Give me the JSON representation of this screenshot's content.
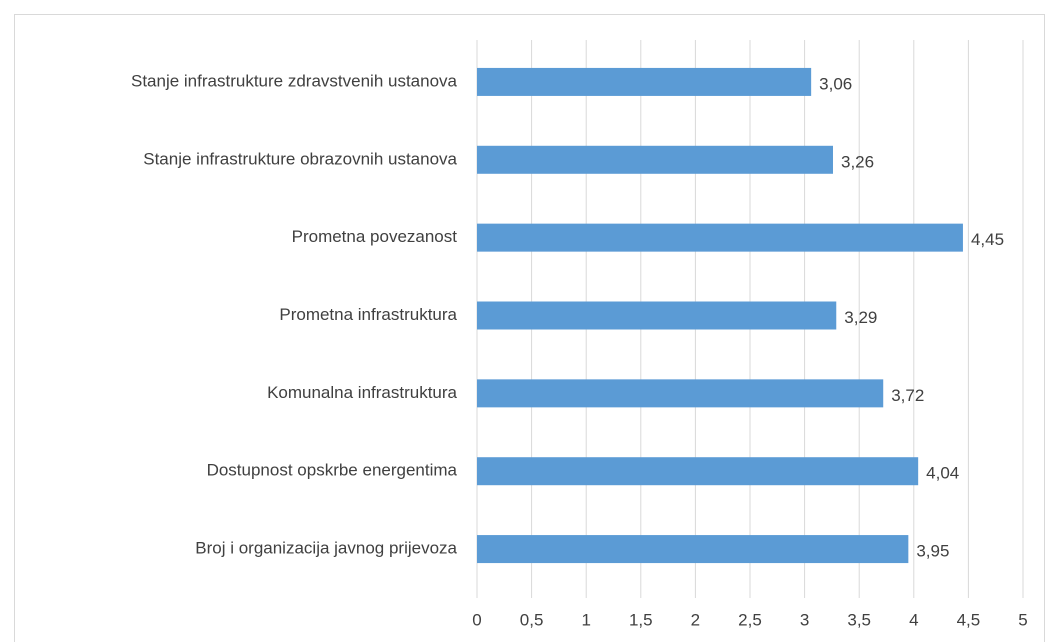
{
  "chart_data": {
    "type": "bar",
    "orientation": "horizontal",
    "categories": [
      "Stanje infrastrukture zdravstvenih ustanova",
      "Stanje infrastrukture obrazovnih ustanova",
      "Prometna povezanost",
      "Prometna infrastruktura",
      "Komunalna infrastruktura",
      "Dostupnost opskrbe energentima",
      "Broj i organizacija javnog prijevoza"
    ],
    "values": [
      3.06,
      3.26,
      4.45,
      3.29,
      3.72,
      4.04,
      3.95
    ],
    "value_labels": [
      "3,06",
      "3,26",
      "4,45",
      "3,29",
      "3,72",
      "4,04",
      "3,95"
    ],
    "color": "#5b9bd5",
    "xlim": [
      0,
      5
    ],
    "xticks": [
      0,
      {
        "value": 0.5,
        "label": "0,5"
      },
      1,
      {
        "value": 1.5,
        "label": "1,5"
      },
      2,
      {
        "value": 2.5,
        "label": "2,5"
      },
      3,
      {
        "value": 3.5,
        "label": "3,5"
      },
      4,
      {
        "value": 4.5,
        "label": "4,5"
      },
      5
    ],
    "grid": true
  }
}
